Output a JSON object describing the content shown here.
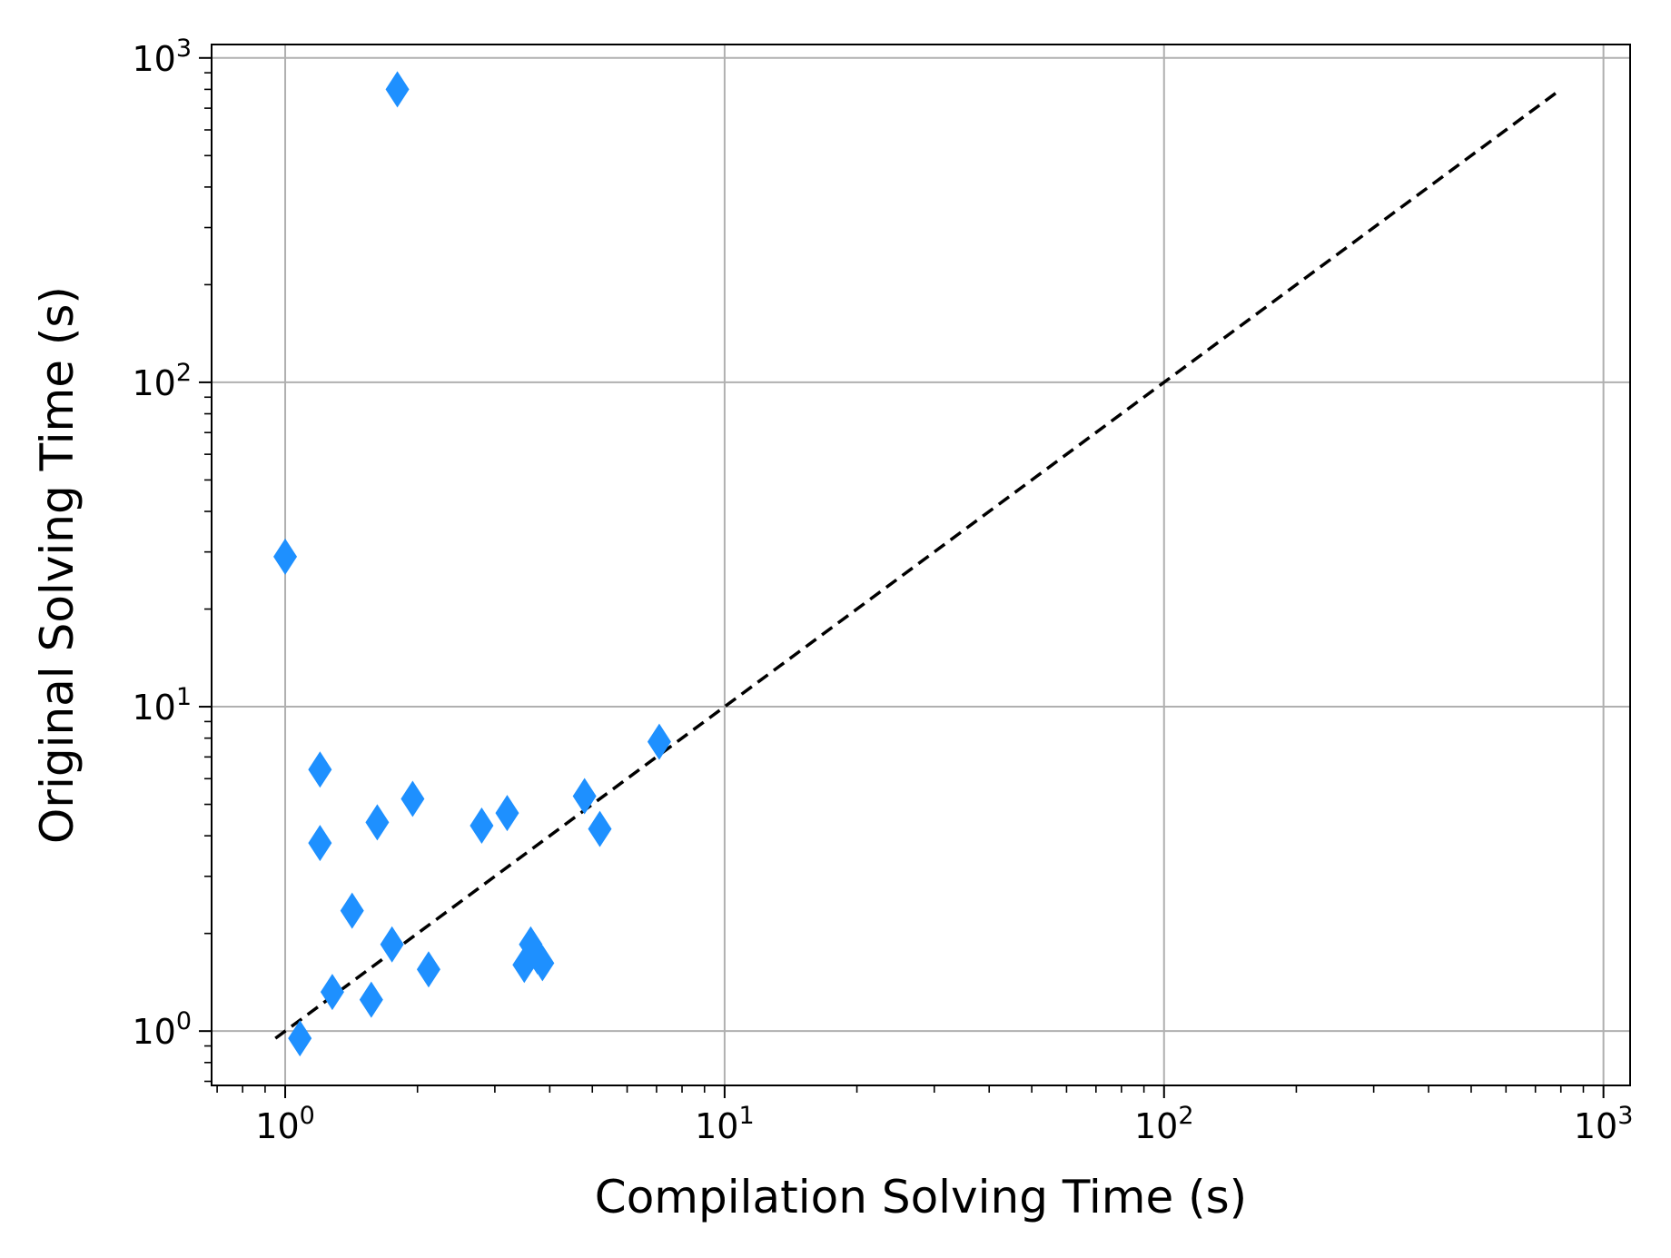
{
  "chart_data": {
    "type": "scatter",
    "xlabel": "Compilation Solving Time (s)",
    "ylabel": "Original Solving Time (s)",
    "xscale": "log",
    "yscale": "log",
    "xlim": [
      0.68,
      1150
    ],
    "ylim": [
      0.68,
      1100
    ],
    "grid": true,
    "x_ticks": [
      {
        "base": "10",
        "exp": "0",
        "value": 1
      },
      {
        "base": "10",
        "exp": "1",
        "value": 10
      },
      {
        "base": "10",
        "exp": "2",
        "value": 100
      },
      {
        "base": "10",
        "exp": "3",
        "value": 1000
      }
    ],
    "y_ticks": [
      {
        "base": "10",
        "exp": "0",
        "value": 1
      },
      {
        "base": "10",
        "exp": "1",
        "value": 10
      },
      {
        "base": "10",
        "exp": "2",
        "value": 100
      },
      {
        "base": "10",
        "exp": "3",
        "value": 1000
      }
    ],
    "marker": "diamond",
    "marker_color": "#1e90ff",
    "points": [
      {
        "x": 1.0,
        "y": 29
      },
      {
        "x": 1.8,
        "y": 800
      },
      {
        "x": 1.08,
        "y": 0.95
      },
      {
        "x": 1.2,
        "y": 6.4
      },
      {
        "x": 1.2,
        "y": 3.8
      },
      {
        "x": 1.28,
        "y": 1.32
      },
      {
        "x": 1.42,
        "y": 2.35
      },
      {
        "x": 1.57,
        "y": 1.25
      },
      {
        "x": 1.62,
        "y": 4.4
      },
      {
        "x": 1.75,
        "y": 1.85
      },
      {
        "x": 1.95,
        "y": 5.2
      },
      {
        "x": 2.12,
        "y": 1.55
      },
      {
        "x": 2.8,
        "y": 4.3
      },
      {
        "x": 3.2,
        "y": 4.7
      },
      {
        "x": 3.5,
        "y": 1.6
      },
      {
        "x": 3.62,
        "y": 1.85
      },
      {
        "x": 3.75,
        "y": 1.7
      },
      {
        "x": 3.85,
        "y": 1.62
      },
      {
        "x": 4.8,
        "y": 5.3
      },
      {
        "x": 5.2,
        "y": 4.2
      },
      {
        "x": 7.1,
        "y": 7.8
      }
    ],
    "reference_line": {
      "style": "dashed",
      "color": "#000000",
      "x": [
        0.95,
        800
      ],
      "y": [
        0.95,
        800
      ]
    }
  }
}
